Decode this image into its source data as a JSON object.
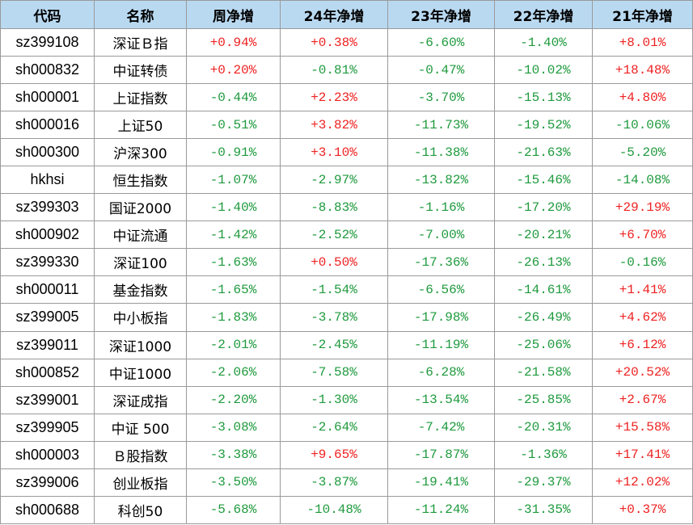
{
  "headers": [
    "代码",
    "名称",
    "周净增",
    "24年净增",
    "23年净增",
    "22年净增",
    "21年净增"
  ],
  "colors": {
    "header_bg": "#b9d9f1",
    "positive": "#ee2222",
    "negative": "#1f9a3e",
    "grid": "#9a9a9a"
  },
  "rows": [
    {
      "code": "sz399108",
      "name": "深证Ｂ指",
      "vals": [
        "+0.94%",
        "+0.38%",
        "-6.60%",
        "-1.40%",
        "+8.01%"
      ]
    },
    {
      "code": "sh000832",
      "name": "中证转债",
      "vals": [
        "+0.20%",
        "-0.81%",
        "-0.47%",
        "-10.02%",
        "+18.48%"
      ]
    },
    {
      "code": "sh000001",
      "name": "上证指数",
      "vals": [
        "-0.44%",
        "+2.23%",
        "-3.70%",
        "-15.13%",
        "+4.80%"
      ]
    },
    {
      "code": "sh000016",
      "name": "上证50",
      "vals": [
        "-0.51%",
        "+3.82%",
        "-11.73%",
        "-19.52%",
        "-10.06%"
      ]
    },
    {
      "code": "sh000300",
      "name": "沪深300",
      "vals": [
        "-0.91%",
        "+3.10%",
        "-11.38%",
        "-21.63%",
        "-5.20%"
      ]
    },
    {
      "code": "hkhsi",
      "name": "恒生指数",
      "vals": [
        "-1.07%",
        "-2.97%",
        "-13.82%",
        "-15.46%",
        "-14.08%"
      ]
    },
    {
      "code": "sz399303",
      "name": "国证2000",
      "vals": [
        "-1.40%",
        "-8.83%",
        "-1.16%",
        "-17.20%",
        "+29.19%"
      ]
    },
    {
      "code": "sh000902",
      "name": "中证流通",
      "vals": [
        "-1.42%",
        "-2.52%",
        "-7.00%",
        "-20.21%",
        "+6.70%"
      ]
    },
    {
      "code": "sz399330",
      "name": "深证100",
      "vals": [
        "-1.63%",
        "+0.50%",
        "-17.36%",
        "-26.13%",
        "-0.16%"
      ]
    },
    {
      "code": "sh000011",
      "name": "基金指数",
      "vals": [
        "-1.65%",
        "-1.54%",
        "-6.56%",
        "-14.61%",
        "+1.41%"
      ]
    },
    {
      "code": "sz399005",
      "name": "中小板指",
      "vals": [
        "-1.83%",
        "-3.78%",
        "-17.98%",
        "-26.49%",
        "+4.62%"
      ]
    },
    {
      "code": "sz399011",
      "name": "深证1000",
      "vals": [
        "-2.01%",
        "-2.45%",
        "-11.19%",
        "-25.06%",
        "+6.12%"
      ]
    },
    {
      "code": "sh000852",
      "name": "中证1000",
      "vals": [
        "-2.06%",
        "-7.58%",
        "-6.28%",
        "-21.58%",
        "+20.52%"
      ]
    },
    {
      "code": "sz399001",
      "name": "深证成指",
      "vals": [
        "-2.20%",
        "-1.30%",
        "-13.54%",
        "-25.85%",
        "+2.67%"
      ]
    },
    {
      "code": "sz399905",
      "name": "中证 500",
      "vals": [
        "-3.08%",
        "-2.64%",
        "-7.42%",
        "-20.31%",
        "+15.58%"
      ]
    },
    {
      "code": "sh000003",
      "name": "Ｂ股指数",
      "vals": [
        "-3.38%",
        "+9.65%",
        "-17.87%",
        "-1.36%",
        "+17.41%"
      ]
    },
    {
      "code": "sz399006",
      "name": "创业板指",
      "vals": [
        "-3.50%",
        "-3.87%",
        "-19.41%",
        "-29.37%",
        "+12.02%"
      ]
    },
    {
      "code": "sh000688",
      "name": "科创50",
      "vals": [
        "-5.68%",
        "-10.48%",
        "-11.24%",
        "-31.35%",
        "+0.37%"
      ]
    }
  ]
}
